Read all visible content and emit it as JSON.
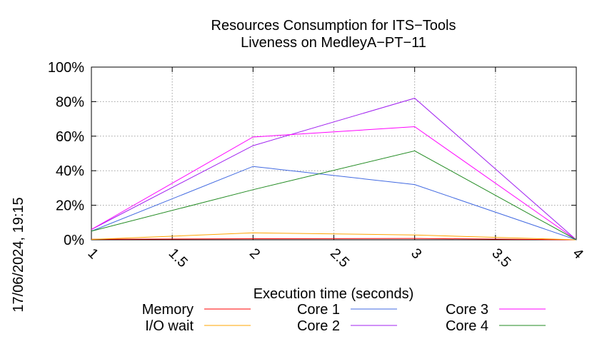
{
  "chart_data": {
    "type": "line",
    "title": "Resources Consumption for ITS−Tools",
    "subtitle": "Liveness on MedleyA−PT−11",
    "xlabel": "Execution time (seconds)",
    "ylabel": "",
    "side_label": "17/06/2024, 19:15",
    "xlim": [
      1,
      4
    ],
    "ylim": [
      0,
      100
    ],
    "x_ticks": [
      1,
      1.5,
      2,
      2.5,
      3,
      3.5,
      4
    ],
    "x_tick_labels": [
      "1",
      "1.5",
      "2",
      "2.5",
      "3",
      "3.5",
      "4"
    ],
    "y_ticks": [
      0,
      20,
      40,
      60,
      80,
      100
    ],
    "y_tick_labels": [
      "0%",
      "20%",
      "40%",
      "60%",
      "80%",
      "100%"
    ],
    "grid": true,
    "legend_position": "bottom",
    "x": [
      1,
      2,
      3,
      4
    ],
    "series": [
      {
        "name": "Memory",
        "color": "#ff0000",
        "values": [
          0.3,
          0.6,
          0.8,
          0
        ]
      },
      {
        "name": "I/O wait",
        "color": "#ffa500",
        "values": [
          0.2,
          4,
          2.8,
          0
        ]
      },
      {
        "name": "Core 1",
        "color": "#4169e1",
        "values": [
          5,
          42.5,
          32,
          0
        ]
      },
      {
        "name": "Core 2",
        "color": "#a020f0",
        "values": [
          6,
          54.5,
          82,
          0
        ]
      },
      {
        "name": "Core 3",
        "color": "#ff00ff",
        "values": [
          6,
          59.5,
          65.5,
          0
        ]
      },
      {
        "name": "Core 4",
        "color": "#228b22",
        "values": [
          5,
          29,
          51.5,
          0
        ]
      }
    ]
  }
}
